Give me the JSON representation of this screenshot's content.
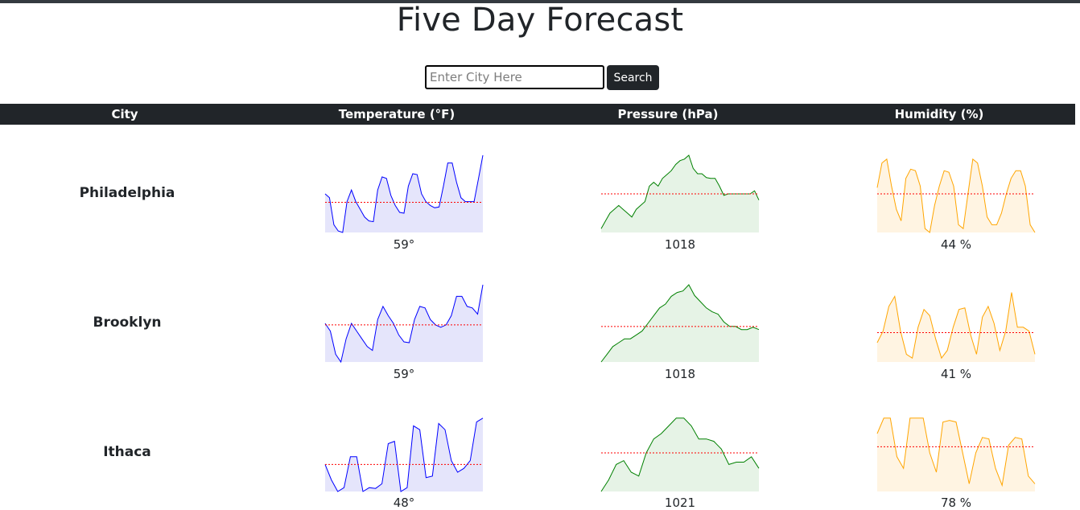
{
  "page": {
    "title": "Five Day Forecast"
  },
  "search": {
    "placeholder": "Enter City Here",
    "value": "",
    "button_label": "Search"
  },
  "table": {
    "headers": [
      "City",
      "Temperature (°F)",
      "Pressure (hPa)",
      "Humidity (%)"
    ]
  },
  "colors": {
    "header_bg": "#212529",
    "temperature_line": "#0000ff",
    "temperature_fill": "#e5e5fb",
    "pressure_line": "#008000",
    "pressure_fill": "#e6f3e6",
    "humidity_line": "#ffa500",
    "humidity_fill": "#fff4e2",
    "average_line": "#ff0000"
  },
  "rows": [
    {
      "city": "Philadelphia",
      "temperature": "59°",
      "pressure": "1018",
      "humidity": "44 %"
    },
    {
      "city": "Brooklyn",
      "temperature": "59°",
      "pressure": "1018",
      "humidity": "41 %"
    },
    {
      "city": "Ithaca",
      "temperature": "48°",
      "pressure": "1021",
      "humidity": "78 %"
    }
  ],
  "chart_data": [
    {
      "type": "line",
      "title": "",
      "xlabel": "",
      "ylabel": "",
      "grid": false,
      "values": [
        0.5,
        0.45,
        0.1,
        0.02,
        0.0,
        0.4,
        0.55,
        0.4,
        0.3,
        0.2,
        0.15,
        0.14,
        0.55,
        0.72,
        0.7,
        0.48,
        0.35,
        0.26,
        0.25,
        0.6,
        0.76,
        0.75,
        0.5,
        0.4,
        0.35,
        0.32,
        0.33,
        0.6,
        0.9,
        0.9,
        0.65,
        0.45,
        0.4,
        0.4,
        0.4,
        0.7,
        1.0
      ],
      "average": 0.39
    },
    {
      "type": "line",
      "title": "",
      "xlabel": "",
      "ylabel": "",
      "grid": false,
      "values": [
        0.05,
        0.15,
        0.25,
        0.3,
        0.35,
        0.3,
        0.25,
        0.2,
        0.3,
        0.35,
        0.4,
        0.6,
        0.65,
        0.6,
        0.7,
        0.75,
        0.8,
        0.88,
        0.93,
        0.95,
        1.0,
        0.83,
        0.76,
        0.76,
        0.71,
        0.7,
        0.7,
        0.6,
        0.48,
        0.5,
        0.5,
        0.5,
        0.5,
        0.5,
        0.5,
        0.54,
        0.42
      ],
      "average": 0.5
    },
    {
      "type": "line",
      "title": "",
      "xlabel": "",
      "ylabel": "",
      "grid": false,
      "values": [
        0.58,
        0.9,
        0.95,
        0.6,
        0.3,
        0.15,
        0.7,
        0.82,
        0.8,
        0.6,
        0.05,
        0.0,
        0.35,
        0.6,
        0.8,
        0.78,
        0.6,
        0.1,
        0.05,
        0.5,
        0.95,
        0.9,
        0.6,
        0.2,
        0.1,
        0.1,
        0.25,
        0.5,
        0.7,
        0.8,
        0.8,
        0.6,
        0.1,
        0.0
      ],
      "average": 0.5
    },
    {
      "type": "line",
      "title": "",
      "xlabel": "",
      "ylabel": "",
      "grid": false,
      "values": [
        0.5,
        0.4,
        0.1,
        0.0,
        0.3,
        0.5,
        0.4,
        0.3,
        0.2,
        0.15,
        0.55,
        0.72,
        0.6,
        0.5,
        0.35,
        0.26,
        0.25,
        0.55,
        0.72,
        0.7,
        0.55,
        0.48,
        0.45,
        0.48,
        0.6,
        0.85,
        0.85,
        0.72,
        0.7,
        0.62,
        1.0
      ],
      "average": 0.48
    },
    {
      "type": "line",
      "title": "",
      "xlabel": "",
      "ylabel": "",
      "grid": false,
      "values": [
        0.0,
        0.1,
        0.2,
        0.25,
        0.3,
        0.3,
        0.35,
        0.4,
        0.5,
        0.6,
        0.7,
        0.75,
        0.85,
        0.9,
        0.92,
        1.0,
        0.86,
        0.78,
        0.7,
        0.65,
        0.62,
        0.52,
        0.46,
        0.46,
        0.42,
        0.42,
        0.45,
        0.42
      ],
      "average": 0.46
    },
    {
      "type": "line",
      "title": "",
      "xlabel": "",
      "ylabel": "",
      "grid": false,
      "values": [
        0.25,
        0.4,
        0.72,
        0.85,
        0.4,
        0.1,
        0.05,
        0.45,
        0.68,
        0.6,
        0.3,
        0.05,
        0.15,
        0.45,
        0.68,
        0.7,
        0.35,
        0.1,
        0.58,
        0.72,
        0.5,
        0.15,
        0.4,
        0.9,
        0.45,
        0.45,
        0.4,
        0.1
      ],
      "average": 0.38
    },
    {
      "type": "line",
      "title": "",
      "xlabel": "",
      "ylabel": "",
      "grid": false,
      "values": [
        0.35,
        0.15,
        0.0,
        0.05,
        0.45,
        0.45,
        0.0,
        0.05,
        0.04,
        0.1,
        0.62,
        0.65,
        0.0,
        0.05,
        0.85,
        0.8,
        0.18,
        0.2,
        0.88,
        0.8,
        0.4,
        0.25,
        0.3,
        0.4,
        0.9,
        0.95
      ],
      "average": 0.35
    },
    {
      "type": "line",
      "title": "",
      "xlabel": "",
      "ylabel": "",
      "grid": false,
      "values": [
        0.0,
        0.15,
        0.35,
        0.4,
        0.25,
        0.2,
        0.5,
        0.68,
        0.75,
        0.85,
        0.95,
        0.95,
        0.85,
        0.68,
        0.68,
        0.65,
        0.55,
        0.35,
        0.38,
        0.38,
        0.45,
        0.3
      ],
      "average": 0.5
    },
    {
      "type": "line",
      "title": "",
      "xlabel": "",
      "ylabel": "",
      "grid": false,
      "values": [
        0.75,
        0.95,
        0.95,
        0.45,
        0.3,
        0.95,
        0.95,
        0.95,
        0.5,
        0.25,
        0.9,
        0.92,
        0.9,
        0.5,
        0.1,
        0.5,
        0.7,
        0.68,
        0.3,
        0.08,
        0.6,
        0.7,
        0.68,
        0.2,
        0.1
      ],
      "average": 0.58
    }
  ]
}
